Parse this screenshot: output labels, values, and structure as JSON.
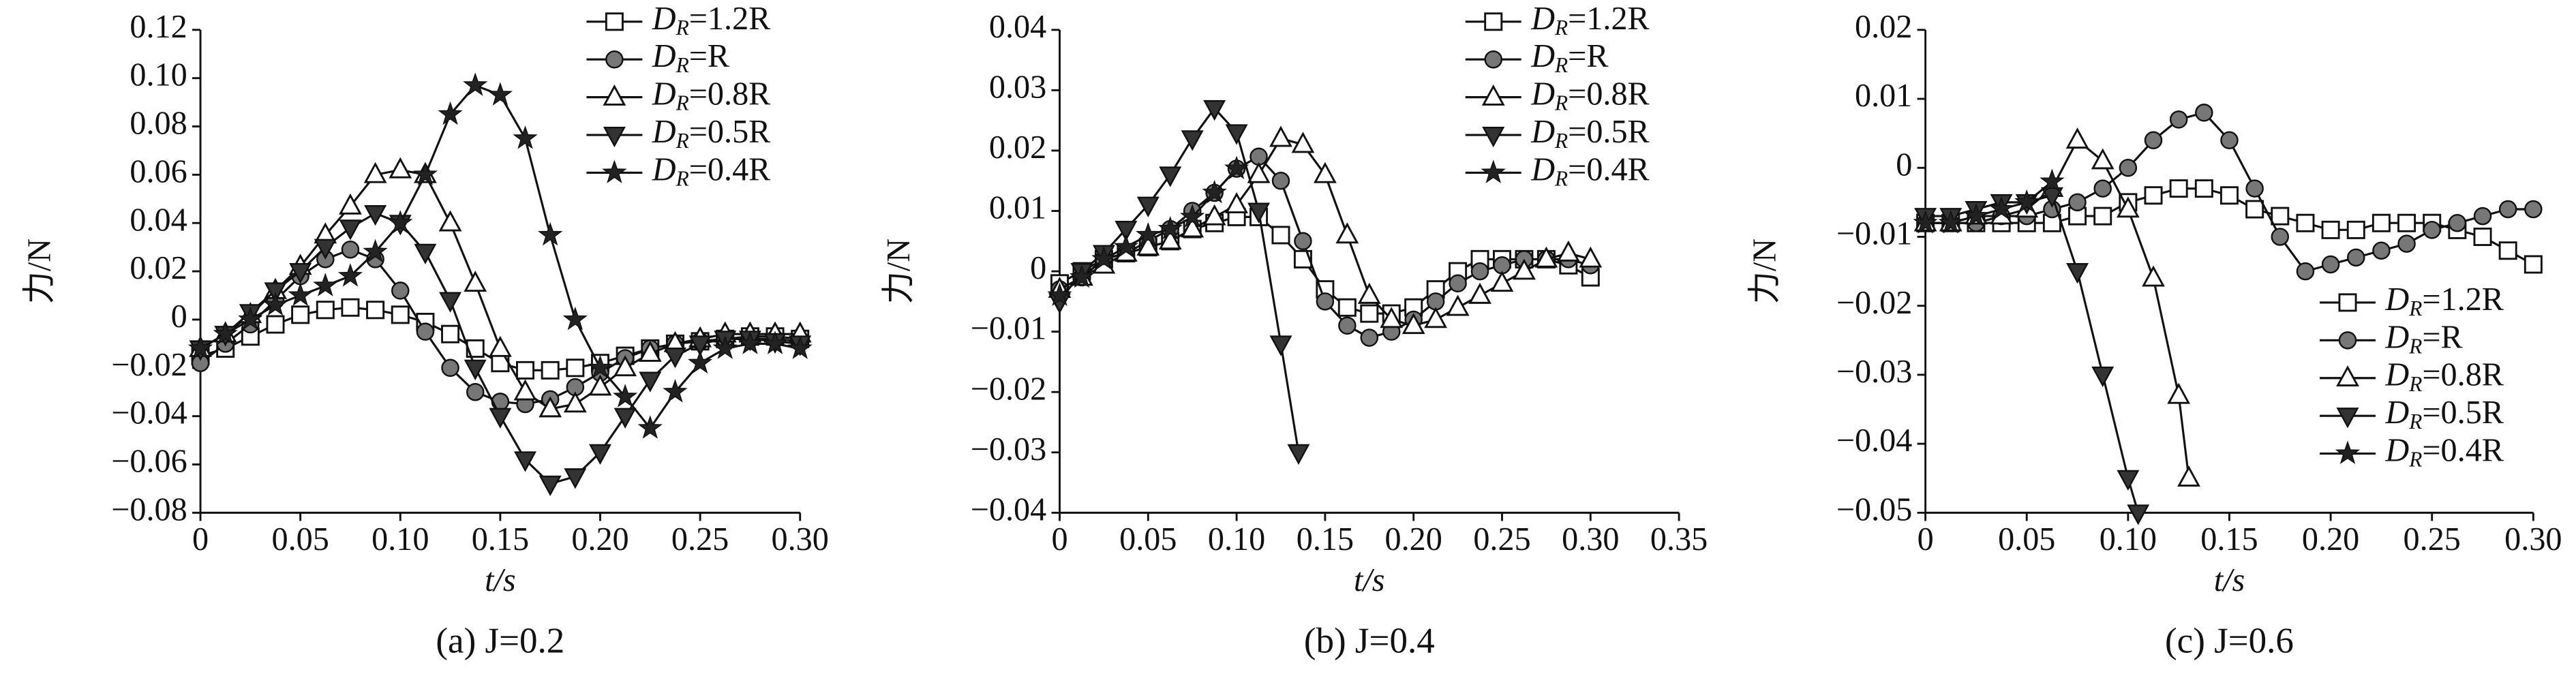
{
  "chart_data": [
    {
      "type": "line",
      "title": "(a) J=0.2",
      "x_label": "t/s",
      "y_label": "力/N",
      "legend": "upper right",
      "xlim": [
        0,
        0.3
      ],
      "ylim": [
        -0.08,
        0.12
      ],
      "xticks": [
        0,
        0.05,
        {
          "value": 0.1,
          "label": "0.10"
        },
        0.15,
        {
          "value": 0.2,
          "label": "0.20"
        },
        0.25,
        {
          "value": 0.3,
          "label": "0.30"
        }
      ],
      "yticks": [
        {
          "value": -0.08,
          "label": "−0.08"
        },
        {
          "value": -0.06,
          "label": "−0.06"
        },
        {
          "value": -0.04,
          "label": "−0.04"
        },
        {
          "value": -0.02,
          "label": "−0.02"
        },
        0,
        0.02,
        0.04,
        0.06,
        0.08,
        {
          "value": 0.1,
          "label": "0.10"
        },
        0.12
      ],
      "series": [
        {
          "name": "DR=1.2R",
          "color": "#111111",
          "marker": "square",
          "x": [
            0,
            0.0125,
            0.025,
            0.0375,
            0.05,
            0.0625,
            0.075,
            0.0875,
            0.1,
            0.1125,
            0.125,
            0.1375,
            0.15,
            0.1625,
            0.175,
            0.1875,
            0.2,
            0.2125,
            0.225,
            0.2375,
            0.25,
            0.2625,
            0.275,
            0.2875,
            0.3
          ],
          "values": [
            -0.015,
            -0.012,
            -0.007,
            -0.002,
            0.002,
            0.004,
            0.005,
            0.004,
            0.002,
            -0.001,
            -0.006,
            -0.012,
            -0.018,
            -0.021,
            -0.021,
            -0.02,
            -0.018,
            -0.015,
            -0.012,
            -0.01,
            -0.009,
            -0.008,
            -0.007,
            -0.007,
            -0.008
          ]
        },
        {
          "name": "DR=R",
          "color": "#111111",
          "marker": "circle",
          "x": [
            0,
            0.0125,
            0.025,
            0.0375,
            0.05,
            0.0625,
            0.075,
            0.0875,
            0.1,
            0.1125,
            0.125,
            0.1375,
            0.15,
            0.1625,
            0.175,
            0.1875,
            0.2,
            0.2125,
            0.225,
            0.2375,
            0.25,
            0.2625,
            0.275,
            0.2875,
            0.3
          ],
          "values": [
            -0.018,
            -0.01,
            -0.002,
            0.008,
            0.018,
            0.025,
            0.029,
            0.025,
            0.012,
            -0.005,
            -0.02,
            -0.03,
            -0.034,
            -0.035,
            -0.033,
            -0.028,
            -0.022,
            -0.016,
            -0.012,
            -0.01,
            -0.009,
            -0.008,
            -0.008,
            -0.008,
            -0.009
          ]
        },
        {
          "name": "DR=0.8R",
          "color": "#111111",
          "marker": "triangle-up",
          "x": [
            0,
            0.0125,
            0.025,
            0.0375,
            0.05,
            0.0625,
            0.075,
            0.0875,
            0.1,
            0.1125,
            0.125,
            0.1375,
            0.15,
            0.1625,
            0.175,
            0.1875,
            0.2,
            0.2125,
            0.225,
            0.2375,
            0.25,
            0.2625,
            0.275,
            0.2875,
            0.3
          ],
          "values": [
            -0.012,
            -0.006,
            0.002,
            0.012,
            0.022,
            0.035,
            0.047,
            0.06,
            0.062,
            0.06,
            0.04,
            0.015,
            -0.012,
            -0.03,
            -0.037,
            -0.035,
            -0.028,
            -0.02,
            -0.014,
            -0.01,
            -0.008,
            -0.006,
            -0.006,
            -0.006,
            -0.006
          ]
        },
        {
          "name": "DR=0.5R",
          "color": "#111111",
          "marker": "triangle-down",
          "x": [
            0,
            0.0125,
            0.025,
            0.0375,
            0.05,
            0.0625,
            0.075,
            0.0875,
            0.1,
            0.1125,
            0.125,
            0.1375,
            0.15,
            0.1625,
            0.175,
            0.1875,
            0.2,
            0.2125,
            0.225,
            0.2375,
            0.25,
            0.2625,
            0.275,
            0.2875,
            0.3
          ],
          "values": [
            -0.012,
            -0.006,
            0.003,
            0.012,
            0.02,
            0.03,
            0.038,
            0.044,
            0.04,
            0.028,
            0.008,
            -0.02,
            -0.04,
            -0.058,
            -0.068,
            -0.065,
            -0.055,
            -0.04,
            -0.025,
            -0.015,
            -0.01,
            -0.008,
            -0.008,
            -0.009,
            -0.01
          ]
        },
        {
          "name": "DR=0.4R",
          "color": "#111111",
          "marker": "star",
          "x": [
            0,
            0.0125,
            0.025,
            0.0375,
            0.05,
            0.0625,
            0.075,
            0.0875,
            0.1,
            0.1125,
            0.125,
            0.1375,
            0.15,
            0.1625,
            0.175,
            0.1875,
            0.2,
            0.2125,
            0.225,
            0.2375,
            0.25,
            0.2625,
            0.275,
            0.2875,
            0.3
          ],
          "values": [
            -0.012,
            -0.006,
            0.0,
            0.006,
            0.01,
            0.014,
            0.018,
            0.028,
            0.04,
            0.06,
            0.085,
            0.097,
            0.093,
            0.075,
            0.035,
            0.0,
            -0.02,
            -0.032,
            -0.045,
            -0.03,
            -0.018,
            -0.012,
            -0.01,
            -0.01,
            -0.012
          ]
        }
      ]
    },
    {
      "type": "line",
      "title": "(b) J=0.4",
      "x_label": "t/s",
      "y_label": "力/N",
      "legend": "upper right",
      "xlim": [
        0,
        0.35
      ],
      "ylim": [
        -0.04,
        0.04
      ],
      "xticks": [
        0,
        0.05,
        {
          "value": 0.1,
          "label": "0.10"
        },
        0.15,
        {
          "value": 0.2,
          "label": "0.20"
        },
        0.25,
        {
          "value": 0.3,
          "label": "0.30"
        },
        0.35
      ],
      "yticks": [
        {
          "value": -0.04,
          "label": "−0.04"
        },
        {
          "value": -0.03,
          "label": "−0.03"
        },
        {
          "value": -0.02,
          "label": "−0.02"
        },
        {
          "value": -0.01,
          "label": "−0.01"
        },
        0,
        0.01,
        0.02,
        0.03,
        0.04
      ],
      "series": [
        {
          "name": "DR=1.2R",
          "color": "#111111",
          "marker": "square",
          "x": [
            0,
            0.0125,
            0.025,
            0.0375,
            0.05,
            0.0625,
            0.075,
            0.0875,
            0.1,
            0.1125,
            0.125,
            0.1375,
            0.15,
            0.1625,
            0.175,
            0.1875,
            0.2,
            0.2125,
            0.225,
            0.2375,
            0.25,
            0.2625,
            0.275,
            0.2875,
            0.3
          ],
          "values": [
            -0.002,
            0.0,
            0.002,
            0.003,
            0.004,
            0.005,
            0.007,
            0.008,
            0.009,
            0.009,
            0.006,
            0.002,
            -0.003,
            -0.006,
            -0.007,
            -0.007,
            -0.006,
            -0.003,
            0.0,
            0.002,
            0.002,
            0.002,
            0.002,
            0.001,
            -0.001
          ]
        },
        {
          "name": "DR=R",
          "color": "#111111",
          "marker": "circle",
          "x": [
            0,
            0.0125,
            0.025,
            0.0375,
            0.05,
            0.0625,
            0.075,
            0.0875,
            0.1,
            0.1125,
            0.125,
            0.1375,
            0.15,
            0.1625,
            0.175,
            0.1875,
            0.2,
            0.2125,
            0.225,
            0.2375,
            0.25,
            0.2625,
            0.275,
            0.2875,
            0.3
          ],
          "values": [
            -0.003,
            -0.001,
            0.002,
            0.003,
            0.005,
            0.007,
            0.01,
            0.013,
            0.017,
            0.019,
            0.015,
            0.005,
            -0.005,
            -0.009,
            -0.011,
            -0.01,
            -0.008,
            -0.005,
            -0.002,
            0.0,
            0.001,
            0.002,
            0.002,
            0.002,
            0.001
          ]
        },
        {
          "name": "DR=0.8R",
          "color": "#111111",
          "marker": "triangle-up",
          "x": [
            0,
            0.0125,
            0.025,
            0.0375,
            0.05,
            0.0625,
            0.075,
            0.0875,
            0.1,
            0.1125,
            0.125,
            0.1375,
            0.15,
            0.1625,
            0.175,
            0.1875,
            0.2,
            0.2125,
            0.225,
            0.2375,
            0.25,
            0.2625,
            0.275,
            0.2875,
            0.3
          ],
          "values": [
            -0.003,
            -0.001,
            0.001,
            0.003,
            0.004,
            0.005,
            0.007,
            0.009,
            0.011,
            0.016,
            0.022,
            0.021,
            0.016,
            0.006,
            -0.004,
            -0.008,
            -0.009,
            -0.008,
            -0.006,
            -0.004,
            -0.002,
            0.0,
            0.002,
            0.003,
            0.002
          ]
        },
        {
          "name": "DR=0.5R",
          "color": "#111111",
          "marker": "triangle-down",
          "x": [
            0,
            0.0125,
            0.025,
            0.0375,
            0.05,
            0.0625,
            0.075,
            0.0875,
            0.1,
            0.1125,
            0.125,
            0.135
          ],
          "values": [
            -0.005,
            0.0,
            0.003,
            0.007,
            0.011,
            0.016,
            0.022,
            0.027,
            0.023,
            0.01,
            -0.012,
            -0.03
          ]
        },
        {
          "name": "DR=0.4R",
          "color": "#111111",
          "marker": "star",
          "x": [
            0,
            0.0125,
            0.025,
            0.0375,
            0.05,
            0.0625,
            0.075,
            0.0875,
            0.1
          ],
          "values": [
            -0.004,
            -0.001,
            0.002,
            0.004,
            0.006,
            0.007,
            0.009,
            0.013,
            0.017
          ]
        }
      ]
    },
    {
      "type": "line",
      "title": "(c) J=0.6",
      "x_label": "t/s",
      "y_label": "力/N",
      "legend": "lower right",
      "xlim": [
        0,
        0.3
      ],
      "ylim": [
        -0.05,
        0.02
      ],
      "xticks": [
        0,
        0.05,
        {
          "value": 0.1,
          "label": "0.10"
        },
        0.15,
        {
          "value": 0.2,
          "label": "0.20"
        },
        0.25,
        {
          "value": 0.3,
          "label": "0.30"
        }
      ],
      "yticks": [
        {
          "value": -0.05,
          "label": "−0.05"
        },
        {
          "value": -0.04,
          "label": "−0.04"
        },
        {
          "value": -0.03,
          "label": "−0.03"
        },
        {
          "value": -0.02,
          "label": "−0.02"
        },
        {
          "value": -0.01,
          "label": "−0.01"
        },
        0,
        0.01,
        0.02
      ],
      "series": [
        {
          "name": "DR=1.2R",
          "color": "#111111",
          "marker": "square",
          "x": [
            0,
            0.0125,
            0.025,
            0.0375,
            0.05,
            0.0625,
            0.075,
            0.0875,
            0.1,
            0.1125,
            0.125,
            0.1375,
            0.15,
            0.1625,
            0.175,
            0.1875,
            0.2,
            0.2125,
            0.225,
            0.2375,
            0.25,
            0.2625,
            0.275,
            0.2875,
            0.3
          ],
          "values": [
            -0.008,
            -0.008,
            -0.008,
            -0.008,
            -0.008,
            -0.008,
            -0.007,
            -0.007,
            -0.005,
            -0.004,
            -0.003,
            -0.003,
            -0.004,
            -0.006,
            -0.007,
            -0.008,
            -0.009,
            -0.009,
            -0.008,
            -0.008,
            -0.008,
            -0.009,
            -0.01,
            -0.012,
            -0.014
          ]
        },
        {
          "name": "DR=R",
          "color": "#111111",
          "marker": "circle",
          "x": [
            0,
            0.0125,
            0.025,
            0.0375,
            0.05,
            0.0625,
            0.075,
            0.0875,
            0.1,
            0.1125,
            0.125,
            0.1375,
            0.15,
            0.1625,
            0.175,
            0.1875,
            0.2,
            0.2125,
            0.225,
            0.2375,
            0.25,
            0.2625,
            0.275,
            0.2875,
            0.3
          ],
          "values": [
            -0.008,
            -0.008,
            -0.008,
            -0.007,
            -0.007,
            -0.006,
            -0.005,
            -0.003,
            0.0,
            0.004,
            0.007,
            0.008,
            0.004,
            -0.003,
            -0.01,
            -0.015,
            -0.014,
            -0.013,
            -0.012,
            -0.011,
            -0.009,
            -0.008,
            -0.007,
            -0.006,
            -0.006
          ]
        },
        {
          "name": "DR=0.8R",
          "color": "#111111",
          "marker": "triangle-up",
          "x": [
            0,
            0.0125,
            0.025,
            0.0375,
            0.05,
            0.0625,
            0.075,
            0.0875,
            0.1,
            0.1125,
            0.125,
            0.13
          ],
          "values": [
            -0.008,
            -0.008,
            -0.007,
            -0.007,
            -0.006,
            -0.003,
            0.004,
            0.001,
            -0.006,
            -0.016,
            -0.033,
            -0.045
          ]
        },
        {
          "name": "DR=0.5R",
          "color": "#111111",
          "marker": "triangle-down",
          "x": [
            0,
            0.0125,
            0.025,
            0.0375,
            0.05,
            0.0625,
            0.075,
            0.0875,
            0.1,
            0.105
          ],
          "values": [
            -0.007,
            -0.007,
            -0.006,
            -0.005,
            -0.005,
            -0.004,
            -0.015,
            -0.03,
            -0.045,
            -0.05
          ]
        },
        {
          "name": "DR=0.4R",
          "color": "#111111",
          "marker": "star",
          "x": [
            0,
            0.0125,
            0.025,
            0.0375,
            0.05,
            0.0625
          ],
          "values": [
            -0.008,
            -0.008,
            -0.007,
            -0.006,
            -0.005,
            -0.002
          ]
        }
      ]
    }
  ]
}
